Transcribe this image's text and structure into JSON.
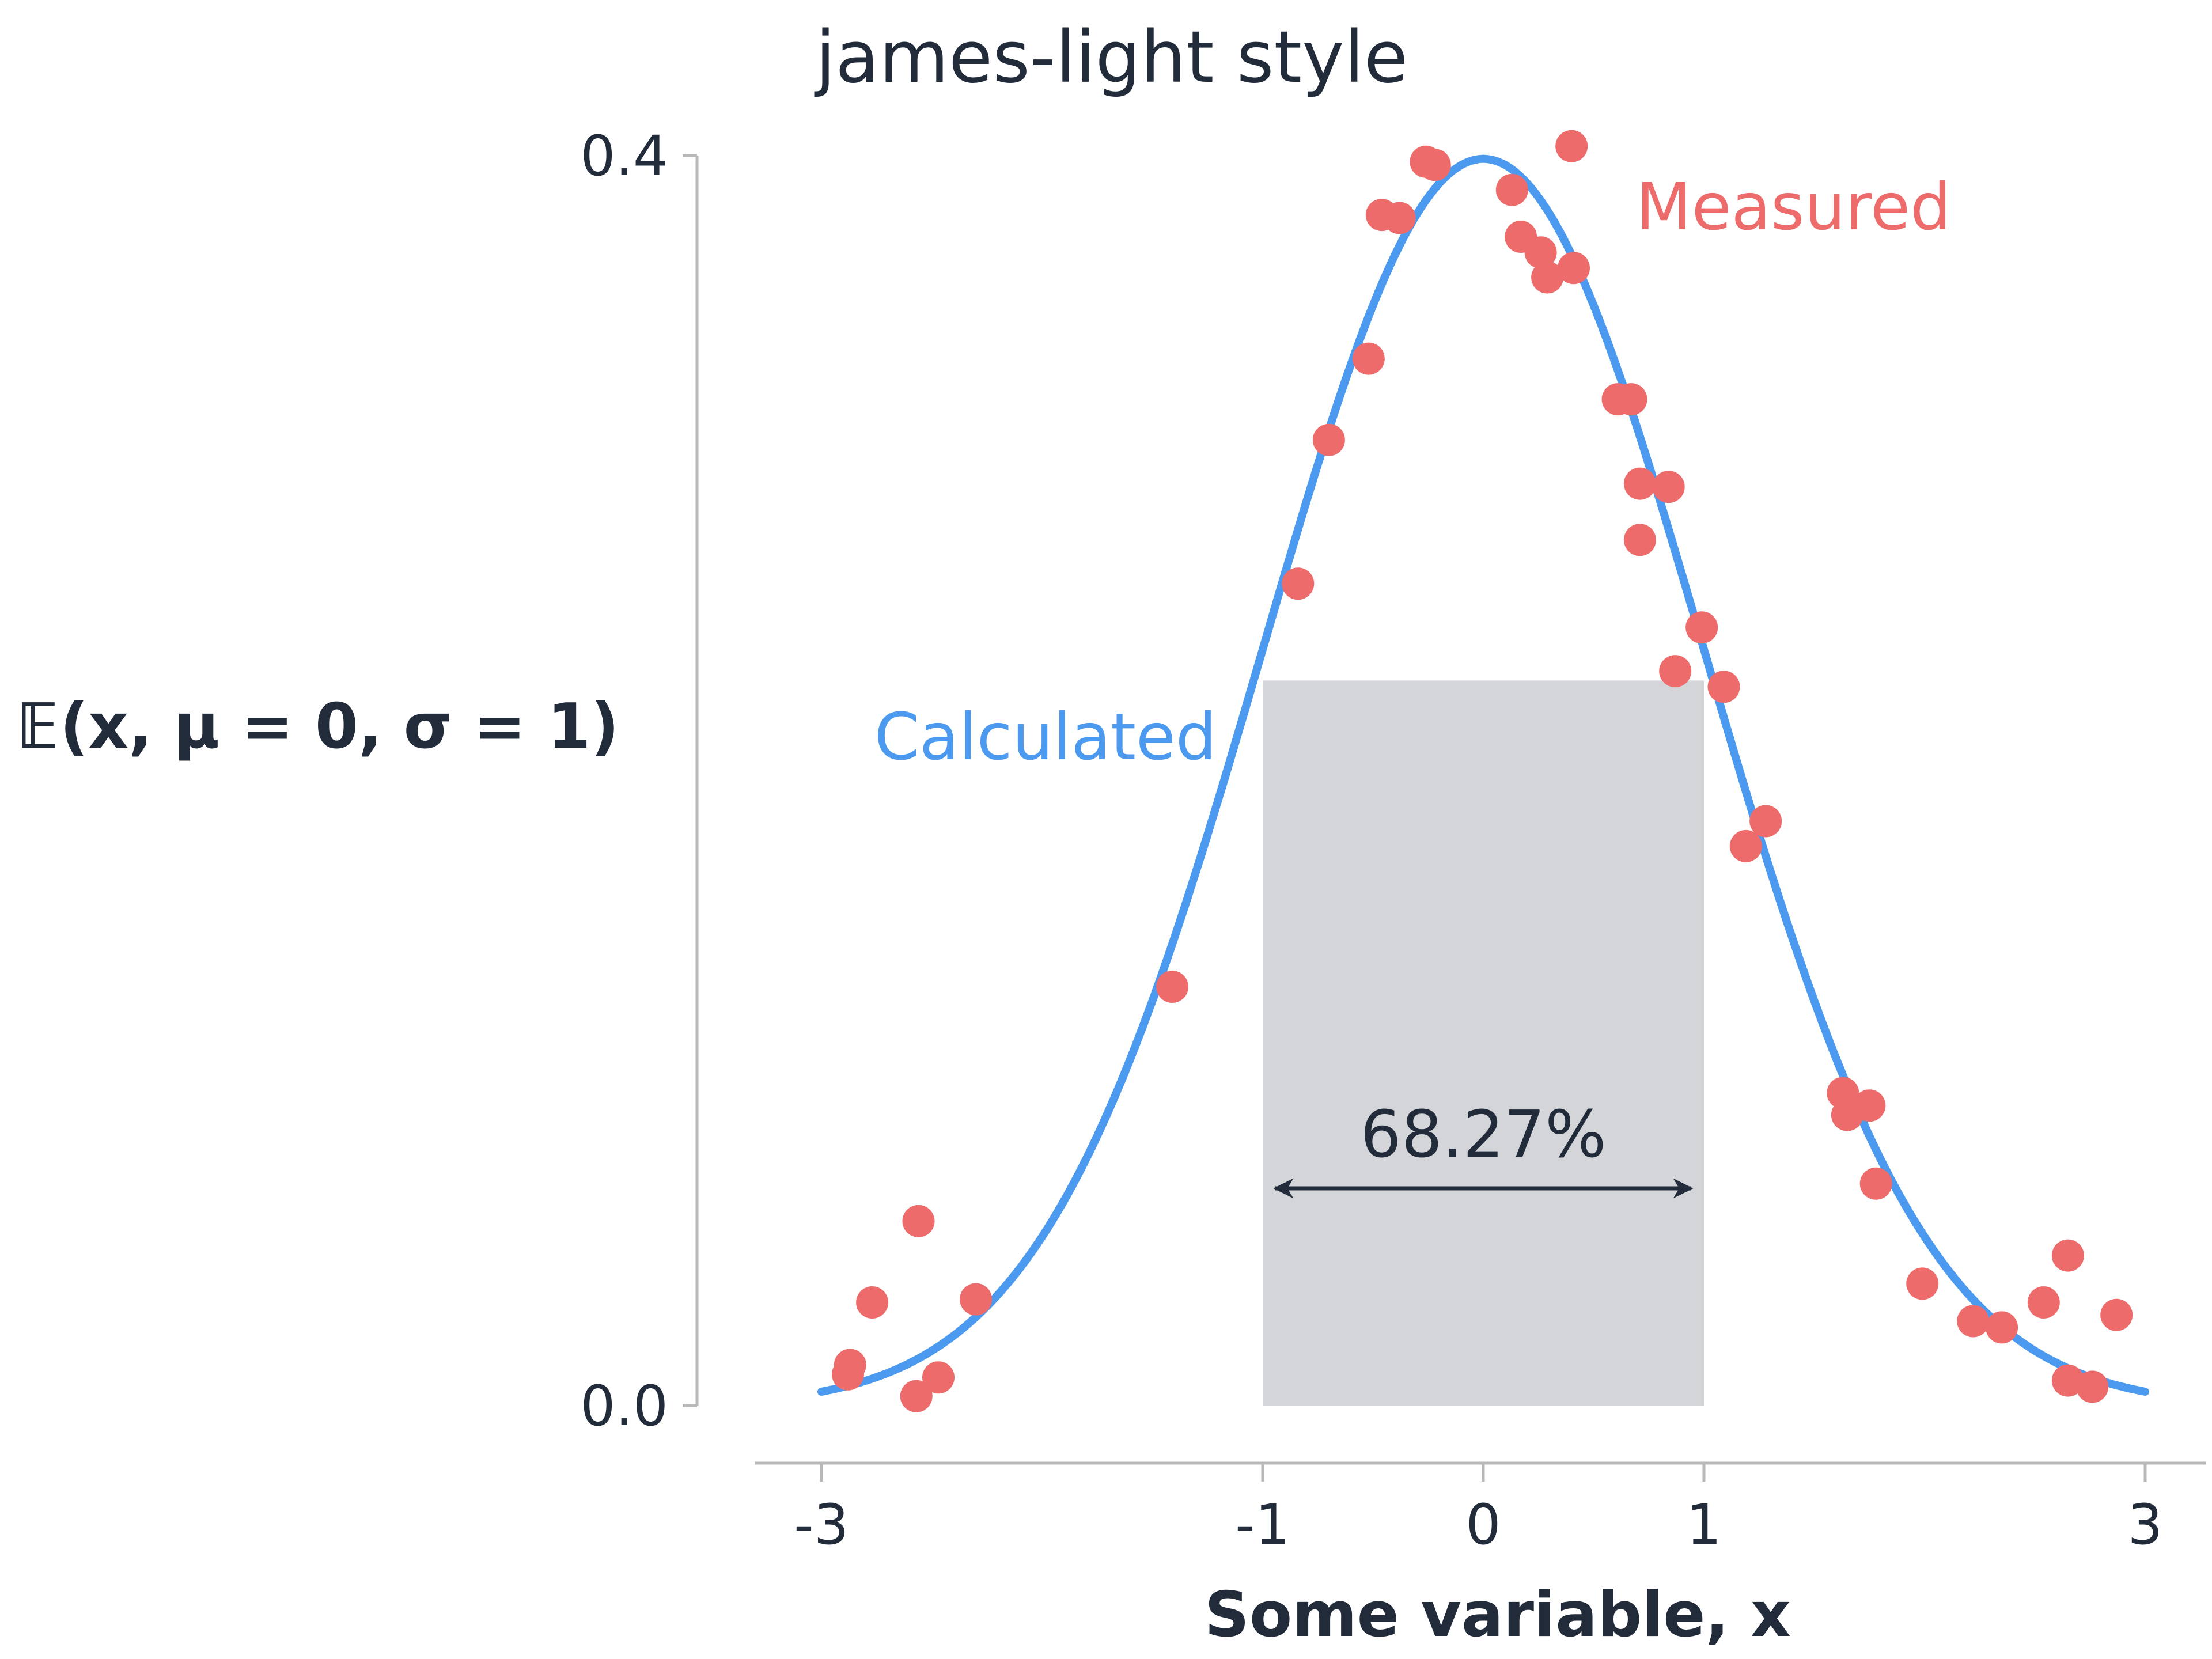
{
  "chart_data": {
    "type": "line",
    "title": "james-light style",
    "xlabel": "Some variable, x",
    "ylabel": "ℤ(x, μ = 0, σ = 1)",
    "ylabel_display": "𝔼(x, μ = 0, σ = 1)",
    "xlim": [
      -3.3,
      3.3
    ],
    "ylim": [
      0.0,
      0.4
    ],
    "xticks": [
      -3,
      -1,
      0,
      1,
      3
    ],
    "xtick_labels": [
      "-3",
      "-1",
      "0",
      "1",
      "3"
    ],
    "yticks": [
      0.0,
      0.4
    ],
    "ytick_labels": [
      "0.0",
      "0.4"
    ],
    "grid": false,
    "shaded_region": {
      "x_from": -1,
      "x_to": 1,
      "y_from": 0.0,
      "y_to": 0.232,
      "color": "#d4d5d9",
      "label": "68.27%"
    },
    "series": [
      {
        "name": "Calculated",
        "kind": "line",
        "color": "#4c9aef",
        "function": "standard normal pdf",
        "x_range": [
          -3.0,
          3.0
        ]
      },
      {
        "name": "Measured",
        "kind": "scatter",
        "color": "#ee6b6b",
        "points": [
          {
            "x": -2.88,
            "y": 0.01
          },
          {
            "x": -2.87,
            "y": 0.013
          },
          {
            "x": -2.77,
            "y": 0.033
          },
          {
            "x": -2.56,
            "y": 0.059
          },
          {
            "x": -2.3,
            "y": 0.034
          },
          {
            "x": -2.57,
            "y": 0.003
          },
          {
            "x": -2.47,
            "y": 0.009
          },
          {
            "x": -1.41,
            "y": 0.134
          },
          {
            "x": -0.84,
            "y": 0.263
          },
          {
            "x": -0.7,
            "y": 0.309
          },
          {
            "x": -0.52,
            "y": 0.335
          },
          {
            "x": -0.46,
            "y": 0.381
          },
          {
            "x": -0.38,
            "y": 0.38
          },
          {
            "x": -0.26,
            "y": 0.398
          },
          {
            "x": -0.22,
            "y": 0.397
          },
          {
            "x": 0.13,
            "y": 0.389
          },
          {
            "x": 0.17,
            "y": 0.374
          },
          {
            "x": 0.26,
            "y": 0.369
          },
          {
            "x": 0.29,
            "y": 0.361
          },
          {
            "x": 0.41,
            "y": 0.364
          },
          {
            "x": 0.4,
            "y": 0.403
          },
          {
            "x": 0.61,
            "y": 0.322
          },
          {
            "x": 0.67,
            "y": 0.322
          },
          {
            "x": 0.71,
            "y": 0.295
          },
          {
            "x": 0.84,
            "y": 0.294
          },
          {
            "x": 0.71,
            "y": 0.277
          },
          {
            "x": 0.87,
            "y": 0.235
          },
          {
            "x": 0.99,
            "y": 0.249
          },
          {
            "x": 1.09,
            "y": 0.23
          },
          {
            "x": 1.19,
            "y": 0.179
          },
          {
            "x": 1.28,
            "y": 0.187
          },
          {
            "x": 1.63,
            "y": 0.1
          },
          {
            "x": 1.65,
            "y": 0.093
          },
          {
            "x": 1.75,
            "y": 0.096
          },
          {
            "x": 1.78,
            "y": 0.071
          },
          {
            "x": 1.99,
            "y": 0.039
          },
          {
            "x": 2.22,
            "y": 0.027
          },
          {
            "x": 2.35,
            "y": 0.025
          },
          {
            "x": 2.54,
            "y": 0.033
          },
          {
            "x": 2.65,
            "y": 0.048
          },
          {
            "x": 2.65,
            "y": 0.008
          },
          {
            "x": 2.76,
            "y": 0.006
          },
          {
            "x": 2.87,
            "y": 0.029
          }
        ]
      }
    ],
    "annotations": [
      {
        "text": "Calculated",
        "color": "#4c9aef"
      },
      {
        "text": "Measured",
        "color": "#ee6b6b"
      },
      {
        "text": "68.27%",
        "color": "#222b3a"
      }
    ]
  }
}
